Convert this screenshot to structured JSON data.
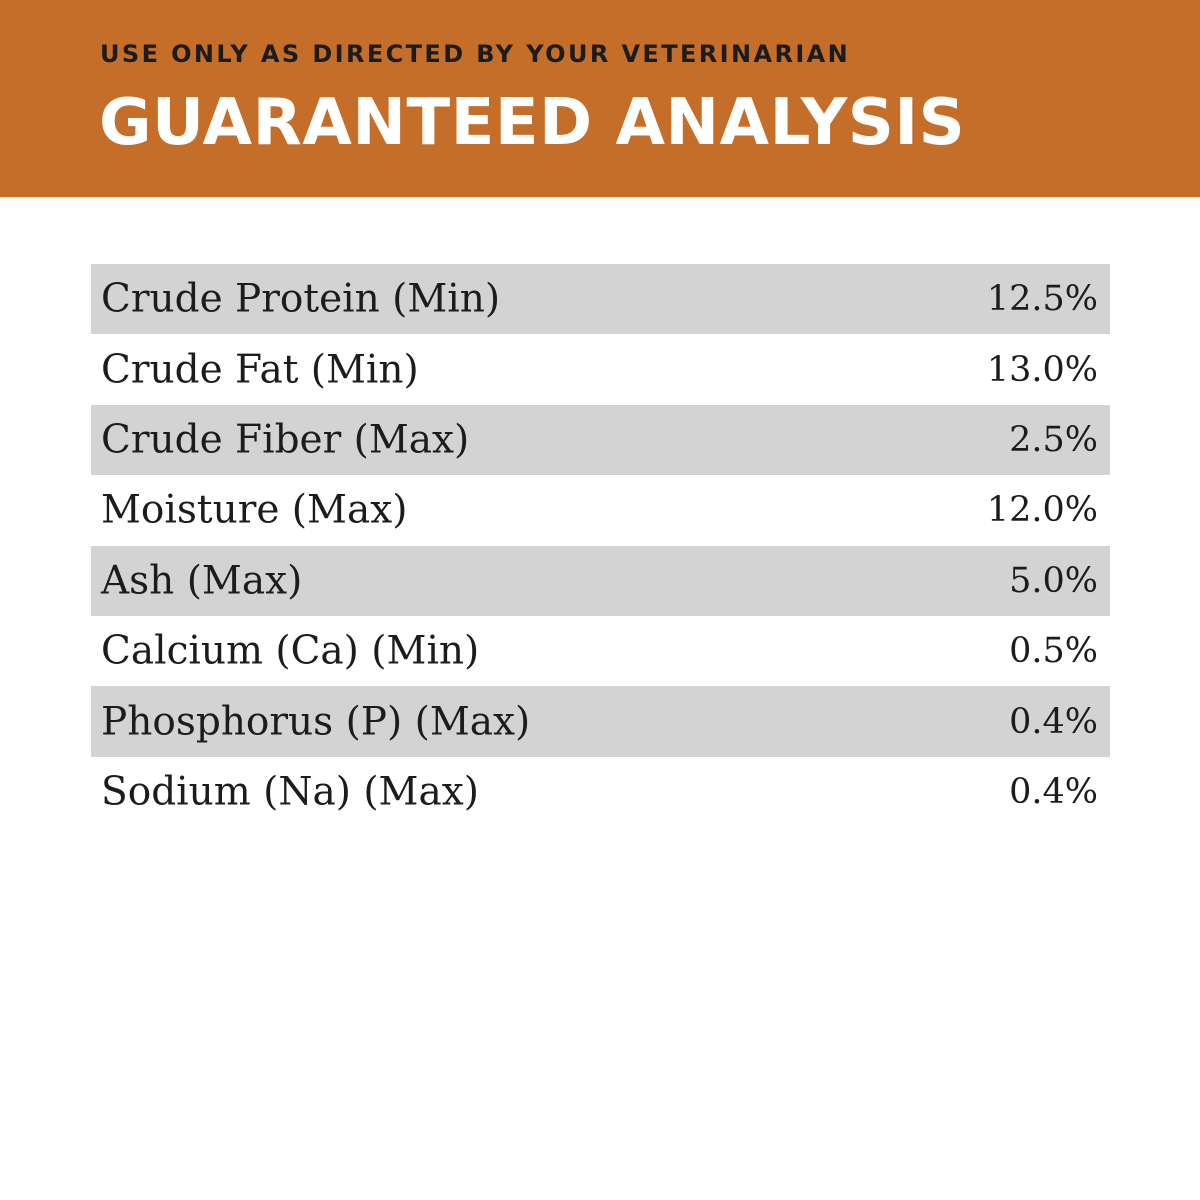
{
  "header": {
    "subtitle": "USE ONLY AS DIRECTED BY YOUR VETERINARIAN",
    "title": "GUARANTEED ANALYSIS"
  },
  "colors": {
    "banner": "#c56e2a",
    "row_shade": "#d3d3d3",
    "text": "#1c1c1c"
  },
  "analysis": {
    "rows": [
      {
        "label": "Crude Protein (Min)",
        "value": "12.5%"
      },
      {
        "label": "Crude Fat (Min)",
        "value": "13.0%"
      },
      {
        "label": "Crude Fiber (Max)",
        "value": "2.5%"
      },
      {
        "label": "Moisture (Max)",
        "value": "12.0%"
      },
      {
        "label": "Ash (Max)",
        "value": "5.0%"
      },
      {
        "label": "Calcium (Ca) (Min)",
        "value": "0.5%"
      },
      {
        "label": "Phosphorus (P) (Max)",
        "value": "0.4%"
      },
      {
        "label": "Sodium (Na) (Max)",
        "value": "0.4%"
      }
    ]
  }
}
